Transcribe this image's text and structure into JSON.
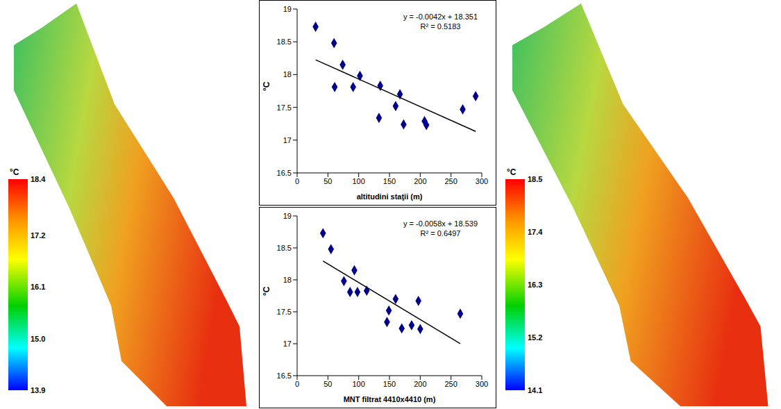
{
  "chart_data": [
    {
      "type": "map",
      "colorbar_label": "°C",
      "colorbar_range": [
        13.9,
        18.4
      ],
      "colorbar_ticks": [
        13.9,
        {
          "value": 15,
          "label": "15.0"
        },
        16.1,
        17.2,
        18.4
      ]
    },
    {
      "type": "scatter",
      "x_label": "altitudini staţii (m)",
      "y_label": "°C",
      "marker": "diamond",
      "color": "#00008b",
      "x": [
        30,
        60,
        61,
        74,
        91,
        102,
        133,
        135,
        160,
        167,
        173,
        207,
        210,
        269,
        290
      ],
      "values": [
        18.73,
        18.48,
        17.81,
        18.15,
        17.81,
        17.98,
        17.34,
        17.83,
        17.52,
        17.7,
        17.24,
        17.29,
        17.23,
        17.47,
        17.67
      ],
      "xlim": [
        0,
        300
      ],
      "xticks": [
        0,
        50,
        100,
        150,
        200,
        250,
        300
      ],
      "ylim": [
        16.5,
        19
      ],
      "yticks": [
        16.5,
        17,
        17.5,
        18,
        18.5,
        19
      ],
      "trendline": {
        "slope": -0.0042,
        "intercept": 18.351,
        "color": "#000000"
      },
      "annotations": [
        "y = -0.0042x + 18.351",
        "R² = 0.5183"
      ]
    },
    {
      "type": "scatter",
      "x_label": "MNT filtrat 4410x4410 (m)",
      "y_label": "°C",
      "marker": "diamond",
      "color": "#00008b",
      "x": [
        42,
        55,
        76,
        86,
        93,
        98,
        113,
        146,
        149,
        160,
        170,
        186,
        197,
        200,
        265
      ],
      "values": [
        18.73,
        18.48,
        17.98,
        17.81,
        18.15,
        17.81,
        17.83,
        17.34,
        17.52,
        17.7,
        17.24,
        17.29,
        17.67,
        17.23,
        17.47
      ],
      "xlim": [
        0,
        300
      ],
      "xticks": [
        0,
        50,
        100,
        150,
        200,
        250,
        300
      ],
      "ylim": [
        16.5,
        19
      ],
      "yticks": [
        16.5,
        17,
        17.5,
        18,
        18.5,
        19
      ],
      "trendline": {
        "slope": -0.0058,
        "intercept": 18.539,
        "color": "#000000"
      },
      "annotations": [
        "y = -0.0058x + 18.539",
        "R² = 0.6497"
      ]
    },
    {
      "type": "map",
      "colorbar_label": "°C",
      "colorbar_range": [
        14.1,
        18.5
      ],
      "colorbar_ticks": [
        14.1,
        15.2,
        16.3,
        17.4,
        18.5
      ]
    }
  ]
}
